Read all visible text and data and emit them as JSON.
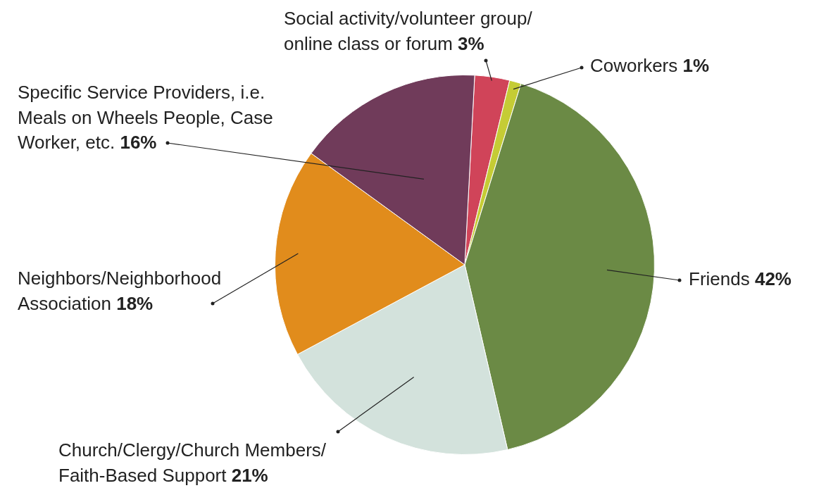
{
  "chart_data": {
    "type": "pie",
    "categories": [
      "Social activity/volunteer group/ online class or forum",
      "Coworkers",
      "Friends",
      "Church/Clergy/Church Members/ Faith-Based Support",
      "Neighbors/Neighborhood Association",
      "Specific Service Providers, i.e. Meals on Wheels People, Case Worker, etc."
    ],
    "values": [
      3,
      1,
      42,
      21,
      18,
      16
    ],
    "value_labels": [
      "3%",
      "1%",
      "42%",
      "21%",
      "18%",
      "16%"
    ],
    "colors": [
      "#d04459",
      "#c5cc35",
      "#6b8a45",
      "#d3e2dc",
      "#e18c1c",
      "#703b5a"
    ],
    "legend": false
  }
}
